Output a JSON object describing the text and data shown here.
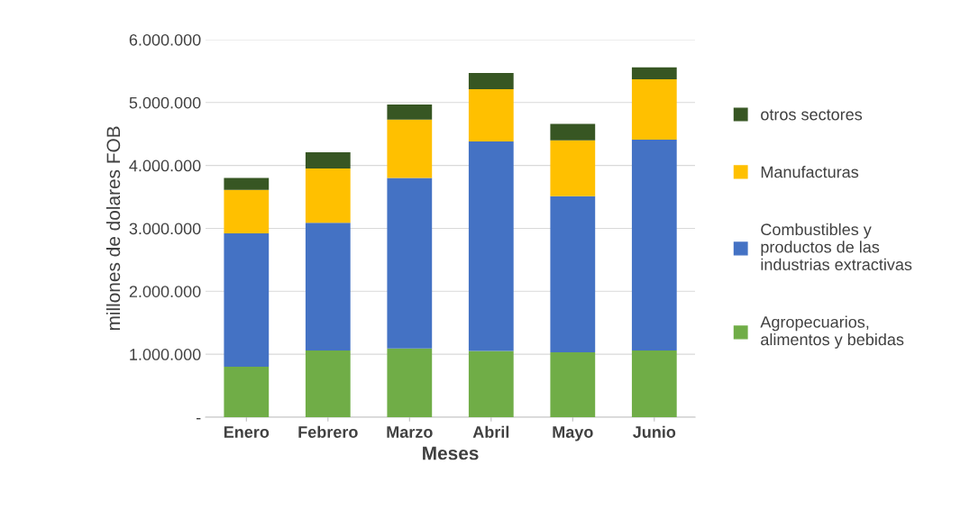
{
  "chart_data": {
    "type": "bar",
    "stacked": true,
    "xlabel": "Meses",
    "ylabel": "millones de dolares FOB",
    "categories": [
      "Enero",
      "Febrero",
      "Marzo",
      "Abril",
      "Mayo",
      "Junio"
    ],
    "series": [
      {
        "name": "Agropecuarios,\nalimentos y bebidas",
        "color": "#70ad47",
        "values": [
          800000,
          1060000,
          1090000,
          1050000,
          1030000,
          1060000
        ]
      },
      {
        "name": "Combustibles y\nproductos de las\nindustrias extractivas",
        "color": "#4472c4",
        "values": [
          2120000,
          2030000,
          2710000,
          3330000,
          2480000,
          3350000
        ]
      },
      {
        "name": "Manufacturas",
        "color": "#ffc000",
        "values": [
          690000,
          860000,
          930000,
          830000,
          890000,
          960000
        ]
      },
      {
        "name": "otros sectores",
        "color": "#375623",
        "values": [
          190000,
          260000,
          240000,
          260000,
          260000,
          190000
        ]
      }
    ],
    "ylim": [
      0,
      6000000
    ],
    "yticks": [
      {
        "value": 0,
        "label": "-"
      },
      {
        "value": 1000000,
        "label": "1.000.000"
      },
      {
        "value": 2000000,
        "label": "2.000.000"
      },
      {
        "value": 3000000,
        "label": "3.000.000"
      },
      {
        "value": 4000000,
        "label": "4.000.000"
      },
      {
        "value": 5000000,
        "label": "5.000.000"
      },
      {
        "value": 6000000,
        "label": "6.000.000"
      }
    ],
    "grid": "y",
    "legend": "right"
  }
}
